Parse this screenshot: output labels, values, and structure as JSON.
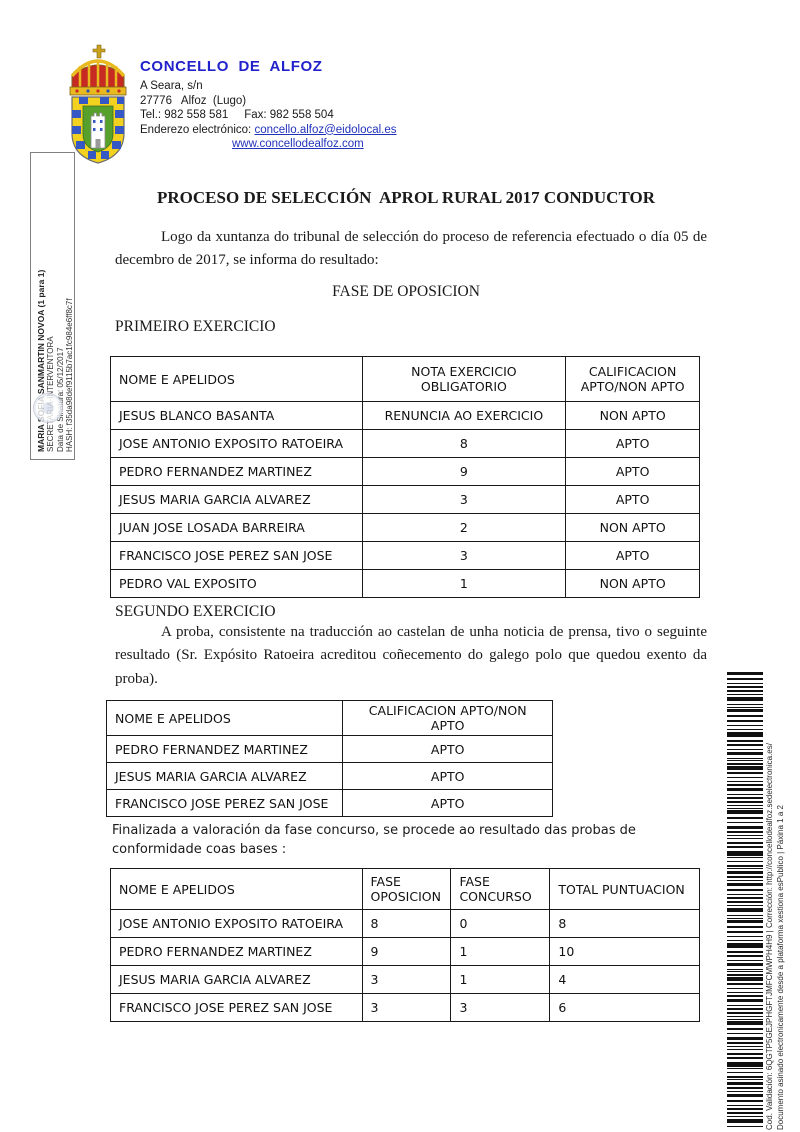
{
  "header": {
    "org_name": "CONCELLO  DE  ALFOZ",
    "address_line1": "A Seara, s/n",
    "address_line2": "27776   Alfoz  (Lugo)",
    "phone_line": "Tel.: 982 558 581     Fax: 982 558 504",
    "email_label": "Enderezo electrónico: ",
    "email_link": "concello.alfoz@eidolocal.es",
    "website_link": "www.concellodealfoz.com",
    "brand_color": "#2222cc",
    "link_color": "#2233bb"
  },
  "signature_sidebar": {
    "signer_name": "MARIA SOFIA SANMARTIN NOVOA (1 para 1)",
    "signer_role": "SECRETARIA-INTERVENTORA",
    "signature_date": "Data de Sinatura: 05/12/2017",
    "hash": "HASH: f35da98def9115b7ac1fc984e6ff8c7f"
  },
  "document": {
    "title": "PROCESO DE SELECCIÓN  APROL RURAL 2017 CONDUCTOR",
    "intro_paragraph": "Logo da xuntanza do tribunal de selección do proceso de referencia efectuado o día 05 de decembro de 2017, se informa do resultado:",
    "phase_heading": "FASE DE OPOSICION",
    "section1_heading": "PRIMEIRO EXERCICIO",
    "section2_heading": "SEGUNDO EXERCICIO",
    "section2_paragraph": "A proba, consistente na traducción ao castelan de unha noticia de prensa,  tivo o seguinte resultado (Sr. Expósito Ratoeira acreditou coñecemento do galego polo que quedou exento da proba).",
    "concurso_paragraph": "Finalizada a valoración da fase concurso, se procede ao resultado das probas de conformidade coas bases :"
  },
  "tables": [
    {
      "name": "primeiro-exercicio-results",
      "columns": [
        "NOME E APELIDOS",
        "NOTA EXERCICIO OBLIGATORIO",
        "CALIFICACION APTO/NON APTO"
      ],
      "rows": [
        [
          "JESUS BLANCO BASANTA",
          "RENUNCIA AO EXERCICIO",
          "NON APTO"
        ],
        [
          "JOSE ANTONIO EXPOSITO RATOEIRA",
          "8",
          "APTO"
        ],
        [
          "PEDRO FERNANDEZ MARTINEZ",
          "9",
          "APTO"
        ],
        [
          "JESUS MARIA GARCIA ALVAREZ",
          "3",
          "APTO"
        ],
        [
          "JUAN JOSE LOSADA BARREIRA",
          "2",
          "NON APTO"
        ],
        [
          "FRANCISCO JOSE PEREZ SAN JOSE",
          "3",
          "APTO"
        ],
        [
          "PEDRO VAL EXPOSITO",
          "1",
          "NON APTO"
        ]
      ]
    },
    {
      "name": "segundo-exercicio-results",
      "columns": [
        "NOME E APELIDOS",
        "CALIFICACION APTO/NON APTO"
      ],
      "rows": [
        [
          "PEDRO FERNANDEZ MARTINEZ",
          "APTO"
        ],
        [
          "JESUS MARIA GARCIA ALVAREZ",
          "APTO"
        ],
        [
          "FRANCISCO JOSE PEREZ SAN JOSE",
          "APTO"
        ]
      ]
    },
    {
      "name": "final-puntuacion",
      "columns": [
        "NOME E APELIDOS",
        "FASE OPOSICION",
        "FASE CONCURSO",
        "TOTAL PUNTUACION"
      ],
      "rows": [
        [
          "JOSE ANTONIO EXPOSITO RATOEIRA",
          "8",
          "0",
          "8"
        ],
        [
          "PEDRO FERNANDEZ MARTINEZ",
          "9",
          "1",
          "10"
        ],
        [
          "JESUS MARIA GARCIA ALVAREZ",
          "3",
          "1",
          "4"
        ],
        [
          "FRANCISCO JOSE PEREZ SAN JOSE",
          "3",
          "3",
          "6"
        ]
      ]
    }
  ],
  "validation_sidebar": {
    "line1": "Cod. Validación: 6QGTP5GEJPHGFTJMFCMWPH4H9 | Corrección: http://concellodealfoz.sedelectronica.es/",
    "line2": "Documento asinado electronicamente desde a plataforma xestiona esPublico | Páxina 1 a 2"
  }
}
